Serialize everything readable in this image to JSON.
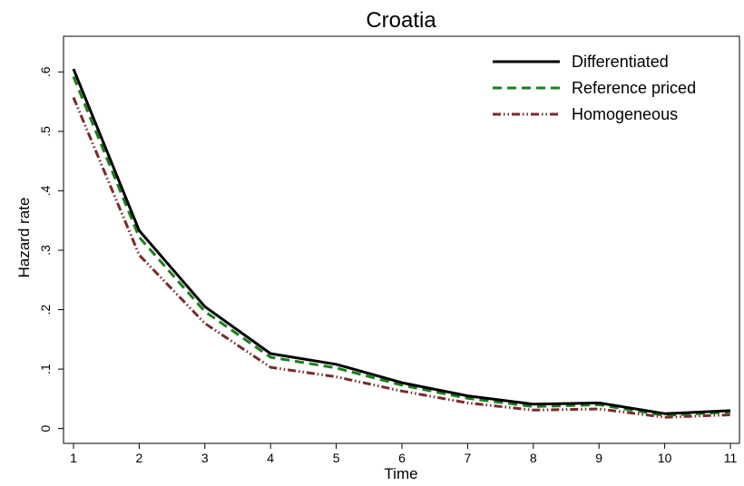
{
  "chart_data": {
    "type": "line",
    "title": "Croatia",
    "xlabel": "Time",
    "ylabel": "Hazard rate",
    "x": [
      1,
      2,
      3,
      4,
      5,
      6,
      7,
      8,
      9,
      10,
      11
    ],
    "xticks": [
      "1",
      "2",
      "3",
      "4",
      "5",
      "6",
      "7",
      "8",
      "9",
      "10",
      "11"
    ],
    "yticks": [
      {
        "value": 0,
        "label": "0"
      },
      {
        "value": 0.1,
        "label": ".1"
      },
      {
        "value": 0.2,
        "label": ".2"
      },
      {
        "value": 0.3,
        "label": ".3"
      },
      {
        "value": 0.4,
        "label": ".4"
      },
      {
        "value": 0.5,
        "label": ".5"
      },
      {
        "value": 0.6,
        "label": ".6"
      }
    ],
    "xlim": [
      1,
      11
    ],
    "ylim": [
      -0.025,
      0.66
    ],
    "grid": false,
    "legend_position": "top-right",
    "series": [
      {
        "name": "Differentiated",
        "color": "#000000",
        "style": "solid",
        "values": [
          0.605,
          0.333,
          0.205,
          0.126,
          0.108,
          0.077,
          0.055,
          0.041,
          0.043,
          0.025,
          0.03
        ]
      },
      {
        "name": "Reference priced",
        "color": "#1a7f1a",
        "style": "dashed",
        "values": [
          0.592,
          0.322,
          0.197,
          0.12,
          0.102,
          0.073,
          0.051,
          0.037,
          0.04,
          0.022,
          0.028
        ]
      },
      {
        "name": "Homogeneous",
        "color": "#7a2a2a",
        "style": "dashdot",
        "values": [
          0.557,
          0.292,
          0.177,
          0.103,
          0.087,
          0.063,
          0.043,
          0.031,
          0.033,
          0.019,
          0.023
        ]
      }
    ]
  }
}
